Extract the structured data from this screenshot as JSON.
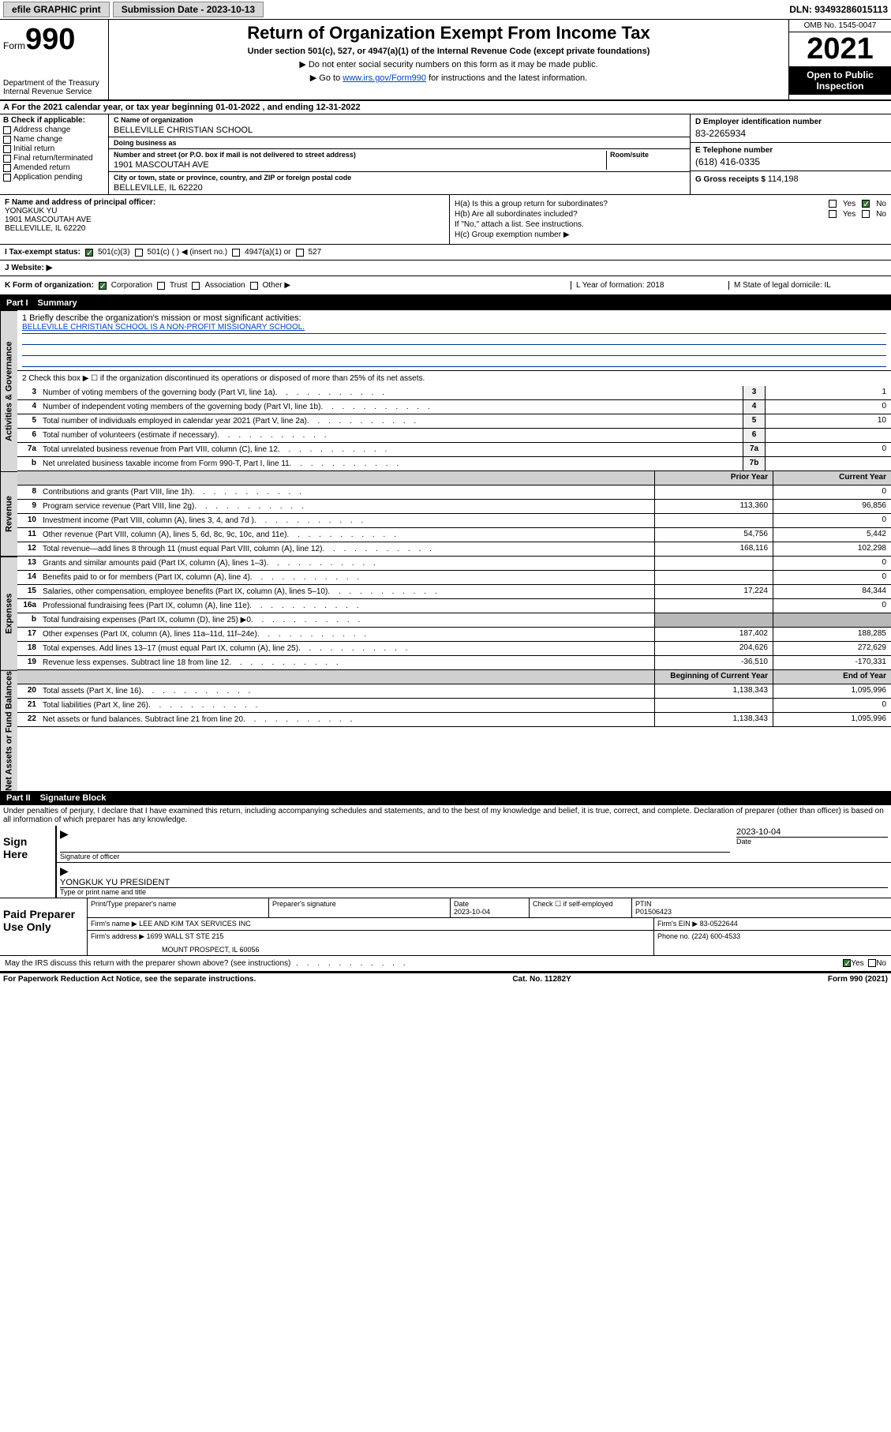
{
  "topbar": {
    "efile": "efile GRAPHIC print",
    "subdate_lbl": "Submission Date - ",
    "subdate": "2023-10-13",
    "dln": "DLN: 93493286015113"
  },
  "header": {
    "form_lbl": "Form",
    "form_num": "990",
    "dept": "Department of the Treasury",
    "irs": "Internal Revenue Service",
    "title": "Return of Organization Exempt From Income Tax",
    "sub1": "Under section 501(c), 527, or 4947(a)(1) of the Internal Revenue Code (except private foundations)",
    "sub2": "▶ Do not enter social security numbers on this form as it may be made public.",
    "sub3a": "▶ Go to ",
    "sub3link": "www.irs.gov/Form990",
    "sub3b": " for instructions and the latest information.",
    "omb": "OMB No. 1545-0047",
    "year": "2021",
    "open": "Open to Public Inspection"
  },
  "rowA": "A For the 2021 calendar year, or tax year beginning 01-01-2022  , and ending 12-31-2022",
  "colB": {
    "hdr": "B Check if applicable:",
    "c1": "Address change",
    "c2": "Name change",
    "c3": "Initial return",
    "c4": "Final return/terminated",
    "c5": "Amended return",
    "c6": "Application pending"
  },
  "colC": {
    "name_lbl": "C Name of organization",
    "name": "BELLEVILLE CHRISTIAN SCHOOL",
    "dba_lbl": "Doing business as",
    "addr_lbl": "Number and street (or P.O. box if mail is not delivered to street address)",
    "room_lbl": "Room/suite",
    "addr": "1901 MASCOUTAH AVE",
    "city_lbl": "City or town, state or province, country, and ZIP or foreign postal code",
    "city": "BELLEVILLE, IL  62220"
  },
  "colD": {
    "ein_lbl": "D Employer identification number",
    "ein": "83-2265934",
    "tel_lbl": "E Telephone number",
    "tel": "(618) 416-0335",
    "gross_lbl": "G Gross receipts $ ",
    "gross": "114,198"
  },
  "colF": {
    "lbl": "F Name and address of principal officer:",
    "name": "YONGKUK YU",
    "addr": "1901 MASCOUTAH AVE",
    "city": "BELLEVILLE, IL  62220"
  },
  "colH": {
    "a": "H(a)  Is this a group return for subordinates?",
    "b": "H(b)  Are all subordinates included?",
    "b2": "If \"No,\" attach a list. See instructions.",
    "c": "H(c)  Group exemption number ▶",
    "yes": "Yes",
    "no": "No"
  },
  "rowI": {
    "lbl": "I  Tax-exempt status:",
    "o1": "501(c)(3)",
    "o2": "501(c) (   ) ◀ (insert no.)",
    "o3": "4947(a)(1) or",
    "o4": "527"
  },
  "rowJ": {
    "lbl": "J  Website: ▶"
  },
  "rowK": {
    "lbl": "K Form of organization:",
    "o1": "Corporation",
    "o2": "Trust",
    "o3": "Association",
    "o4": "Other ▶",
    "l": "L Year of formation: 2018",
    "m": "M State of legal domicile: IL"
  },
  "part1": {
    "num": "Part I",
    "title": "Summary"
  },
  "summary": {
    "l1": "1  Briefly describe the organization's mission or most significant activities:",
    "mission": "BELLEVILLE CHRISTIAN SCHOOL IS A NON-PROFIT MISSIONARY SCHOOL.",
    "l2": "2  Check this box ▶  ☐  if the organization discontinued its operations or disposed of more than 25% of its net assets.",
    "lines": [
      {
        "n": "3",
        "d": "Number of voting members of the governing body (Part VI, line 1a)",
        "b": "3",
        "v": "1"
      },
      {
        "n": "4",
        "d": "Number of independent voting members of the governing body (Part VI, line 1b)",
        "b": "4",
        "v": "0"
      },
      {
        "n": "5",
        "d": "Total number of individuals employed in calendar year 2021 (Part V, line 2a)",
        "b": "5",
        "v": "10"
      },
      {
        "n": "6",
        "d": "Total number of volunteers (estimate if necessary)",
        "b": "6",
        "v": ""
      },
      {
        "n": "7a",
        "d": "Total unrelated business revenue from Part VIII, column (C), line 12",
        "b": "7a",
        "v": "0"
      },
      {
        "n": "b",
        "d": "Net unrelated business taxable income from Form 990-T, Part I, line 11",
        "b": "7b",
        "v": ""
      }
    ],
    "hdr_prior": "Prior Year",
    "hdr_curr": "Current Year",
    "rev": [
      {
        "n": "8",
        "d": "Contributions and grants (Part VIII, line 1h)",
        "p": "",
        "c": "0"
      },
      {
        "n": "9",
        "d": "Program service revenue (Part VIII, line 2g)",
        "p": "113,360",
        "c": "96,856"
      },
      {
        "n": "10",
        "d": "Investment income (Part VIII, column (A), lines 3, 4, and 7d )",
        "p": "",
        "c": "0"
      },
      {
        "n": "11",
        "d": "Other revenue (Part VIII, column (A), lines 5, 6d, 8c, 9c, 10c, and 11e)",
        "p": "54,756",
        "c": "5,442"
      },
      {
        "n": "12",
        "d": "Total revenue—add lines 8 through 11 (must equal Part VIII, column (A), line 12)",
        "p": "168,116",
        "c": "102,298"
      }
    ],
    "exp": [
      {
        "n": "13",
        "d": "Grants and similar amounts paid (Part IX, column (A), lines 1–3)",
        "p": "",
        "c": "0"
      },
      {
        "n": "14",
        "d": "Benefits paid to or for members (Part IX, column (A), line 4)",
        "p": "",
        "c": "0"
      },
      {
        "n": "15",
        "d": "Salaries, other compensation, employee benefits (Part IX, column (A), lines 5–10)",
        "p": "17,224",
        "c": "84,344"
      },
      {
        "n": "16a",
        "d": "Professional fundraising fees (Part IX, column (A), line 11e)",
        "p": "",
        "c": "0"
      },
      {
        "n": "b",
        "d": "Total fundraising expenses (Part IX, column (D), line 25) ▶0",
        "p": "gray",
        "c": "gray"
      },
      {
        "n": "17",
        "d": "Other expenses (Part IX, column (A), lines 11a–11d, 11f–24e)",
        "p": "187,402",
        "c": "188,285"
      },
      {
        "n": "18",
        "d": "Total expenses. Add lines 13–17 (must equal Part IX, column (A), line 25)",
        "p": "204,626",
        "c": "272,629"
      },
      {
        "n": "19",
        "d": "Revenue less expenses. Subtract line 18 from line 12",
        "p": "-36,510",
        "c": "-170,331"
      }
    ],
    "hdr_beg": "Beginning of Current Year",
    "hdr_end": "End of Year",
    "net": [
      {
        "n": "20",
        "d": "Total assets (Part X, line 16)",
        "p": "1,138,343",
        "c": "1,095,996"
      },
      {
        "n": "21",
        "d": "Total liabilities (Part X, line 26)",
        "p": "",
        "c": "0"
      },
      {
        "n": "22",
        "d": "Net assets or fund balances. Subtract line 21 from line 20",
        "p": "1,138,343",
        "c": "1,095,996"
      }
    ]
  },
  "side": {
    "gov": "Activities & Governance",
    "rev": "Revenue",
    "exp": "Expenses",
    "net": "Net Assets or Fund Balances"
  },
  "part2": {
    "num": "Part II",
    "title": "Signature Block"
  },
  "sig": {
    "decl": "Under penalties of perjury, I declare that I have examined this return, including accompanying schedules and statements, and to the best of my knowledge and belief, it is true, correct, and complete. Declaration of preparer (other than officer) is based on all information of which preparer has any knowledge.",
    "sign_here": "Sign Here",
    "sig_off": "Signature of officer",
    "date": "Date",
    "sig_date": "2023-10-04",
    "officer": "YONGKUK YU PRESIDENT",
    "type_name": "Type or print name and title",
    "paid": "Paid Preparer Use Only",
    "prep_name_lbl": "Print/Type preparer's name",
    "prep_sig_lbl": "Preparer's signature",
    "prep_date_lbl": "Date",
    "prep_date": "2023-10-04",
    "check_if": "Check ☐ if self-employed",
    "ptin_lbl": "PTIN",
    "ptin": "P01506423",
    "firm_name_lbl": "Firm's name    ▶",
    "firm_name": "LEE AND KIM TAX SERVICES INC",
    "firm_ein_lbl": "Firm's EIN ▶",
    "firm_ein": "83-0522644",
    "firm_addr_lbl": "Firm's address ▶",
    "firm_addr": "1699 WALL ST STE 215",
    "firm_city": "MOUNT PROSPECT, IL  60056",
    "phone_lbl": "Phone no.",
    "phone": "(224) 600-4533",
    "discuss": "May the IRS discuss this return with the preparer shown above? (see instructions)",
    "yes": "Yes",
    "no": "No"
  },
  "foot": {
    "pra": "For Paperwork Reduction Act Notice, see the separate instructions.",
    "cat": "Cat. No. 11282Y",
    "form": "Form 990 (2021)"
  }
}
